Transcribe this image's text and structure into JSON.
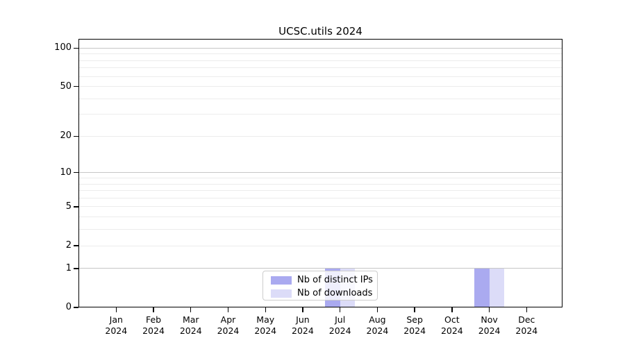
{
  "title": "UCSC.utils 2024",
  "chart_data": {
    "type": "bar",
    "title": "UCSC.utils 2024",
    "categories": [
      "Jan",
      "Feb",
      "Mar",
      "Apr",
      "May",
      "Jun",
      "Jul",
      "Aug",
      "Sep",
      "Oct",
      "Nov",
      "Dec"
    ],
    "category_year": "2024",
    "series": [
      {
        "name": "Nb of distinct IPs",
        "color": "#aaaaf0",
        "values": [
          0,
          0,
          0,
          0,
          0,
          0,
          1,
          0,
          0,
          0,
          1,
          0
        ]
      },
      {
        "name": "Nb of downloads",
        "color": "#dcdcf8",
        "values": [
          0,
          0,
          0,
          0,
          0,
          0,
          1,
          0,
          0,
          0,
          1,
          0
        ]
      }
    ],
    "yscale": "log1p",
    "ylim": [
      0,
      118
    ],
    "y_tick_values": [
      0,
      1,
      2,
      5,
      10,
      20,
      50,
      100
    ],
    "y_major_grid": [
      1,
      10,
      100
    ],
    "y_minor_grid": [
      2,
      3,
      4,
      5,
      6,
      7,
      8,
      9,
      20,
      30,
      40,
      50,
      60,
      70,
      80,
      90
    ],
    "grid": true,
    "legend_position": "inside-bottom-center",
    "colors": {
      "major_grid": "#c6c6c6",
      "minor_grid": "#ececec",
      "axis": "#000000",
      "legend_border": "#cccccc"
    }
  }
}
